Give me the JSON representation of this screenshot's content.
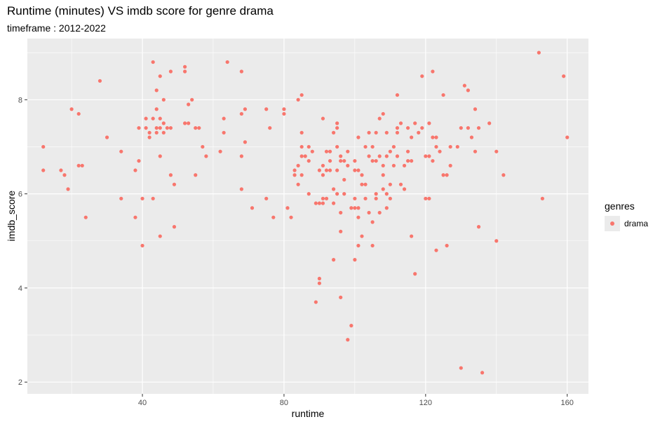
{
  "chart_data": {
    "type": "scatter",
    "title": "Runtime (minutes) VS imdb score for genre drama",
    "subtitle": "timeframe : 2012-2022",
    "xlabel": "runtime",
    "ylabel": "imdb_score",
    "xlim": [
      7.5,
      166
    ],
    "ylim": [
      1.75,
      9.3
    ],
    "xticks": [
      40,
      80,
      120,
      160
    ],
    "yticks": [
      2,
      4,
      6,
      8
    ],
    "grid": true,
    "legend": {
      "title": "genres",
      "position": "right",
      "entries": [
        "drama"
      ]
    },
    "colors": {
      "point": "#F8766D",
      "panel": "#EBEBEB",
      "grid": "#FFFFFF"
    },
    "series": [
      {
        "name": "drama",
        "points": [
          [
            12,
            7.0
          ],
          [
            12,
            6.5
          ],
          [
            17,
            6.5
          ],
          [
            18,
            6.4
          ],
          [
            19,
            6.1
          ],
          [
            20,
            7.8
          ],
          [
            22,
            7.7
          ],
          [
            22,
            6.6
          ],
          [
            23,
            6.6
          ],
          [
            24,
            5.5
          ],
          [
            28,
            8.4
          ],
          [
            30,
            7.2
          ],
          [
            34,
            6.9
          ],
          [
            34,
            5.9
          ],
          [
            38,
            6.5
          ],
          [
            38,
            5.5
          ],
          [
            39,
            7.4
          ],
          [
            39,
            6.7
          ],
          [
            40,
            5.9
          ],
          [
            40,
            4.9
          ],
          [
            41,
            7.4
          ],
          [
            41,
            7.6
          ],
          [
            42,
            7.2
          ],
          [
            42,
            7.3
          ],
          [
            43,
            8.8
          ],
          [
            43,
            7.6
          ],
          [
            43,
            5.9
          ],
          [
            44,
            7.8
          ],
          [
            44,
            8.2
          ],
          [
            44,
            7.4
          ],
          [
            44,
            7.3
          ],
          [
            45,
            8.5
          ],
          [
            45,
            7.6
          ],
          [
            45,
            7.4
          ],
          [
            45,
            6.8
          ],
          [
            45,
            5.1
          ],
          [
            46,
            8.0
          ],
          [
            46,
            7.5
          ],
          [
            46,
            7.3
          ],
          [
            47,
            7.4
          ],
          [
            48,
            8.6
          ],
          [
            48,
            7.4
          ],
          [
            48,
            6.4
          ],
          [
            49,
            6.2
          ],
          [
            49,
            5.3
          ],
          [
            52,
            8.7
          ],
          [
            52,
            8.6
          ],
          [
            52,
            7.5
          ],
          [
            53,
            7.9
          ],
          [
            53,
            7.5
          ],
          [
            54,
            8.0
          ],
          [
            55,
            7.4
          ],
          [
            55,
            6.4
          ],
          [
            56,
            7.4
          ],
          [
            57,
            7.0
          ],
          [
            58,
            6.8
          ],
          [
            62,
            6.9
          ],
          [
            63,
            7.6
          ],
          [
            63,
            7.3
          ],
          [
            64,
            8.8
          ],
          [
            68,
            8.6
          ],
          [
            68,
            7.7
          ],
          [
            68,
            6.8
          ],
          [
            68,
            6.1
          ],
          [
            69,
            7.8
          ],
          [
            69,
            7.1
          ],
          [
            71,
            5.7
          ],
          [
            75,
            5.9
          ],
          [
            75,
            7.8
          ],
          [
            76,
            7.4
          ],
          [
            77,
            5.5
          ],
          [
            80,
            7.8
          ],
          [
            80,
            7.7
          ],
          [
            81,
            5.7
          ],
          [
            82,
            5.5
          ],
          [
            83,
            6.5
          ],
          [
            83,
            6.4
          ],
          [
            84,
            8.0
          ],
          [
            84,
            6.6
          ],
          [
            84,
            6.2
          ],
          [
            85,
            8.1
          ],
          [
            85,
            7.3
          ],
          [
            85,
            7.0
          ],
          [
            85,
            6.8
          ],
          [
            85,
            6.4
          ],
          [
            86,
            6.8
          ],
          [
            87,
            7.0
          ],
          [
            87,
            6.7
          ],
          [
            87,
            6.0
          ],
          [
            88,
            6.9
          ],
          [
            89,
            5.8
          ],
          [
            89,
            3.7
          ],
          [
            90,
            6.5
          ],
          [
            90,
            5.8
          ],
          [
            90,
            4.2
          ],
          [
            90,
            4.1
          ],
          [
            91,
            7.6
          ],
          [
            91,
            6.6
          ],
          [
            91,
            6.4
          ],
          [
            91,
            5.8
          ],
          [
            91,
            5.9
          ],
          [
            92,
            6.9
          ],
          [
            92,
            6.5
          ],
          [
            92,
            5.9
          ],
          [
            93,
            6.9
          ],
          [
            93,
            6.7
          ],
          [
            93,
            6.5
          ],
          [
            94,
            7.3
          ],
          [
            94,
            4.6
          ],
          [
            94,
            6.1
          ],
          [
            94,
            5.8
          ],
          [
            95,
            7.4
          ],
          [
            95,
            7.5
          ],
          [
            95,
            7.0
          ],
          [
            95,
            6.5
          ],
          [
            95,
            6.0
          ],
          [
            96,
            6.8
          ],
          [
            96,
            6.7
          ],
          [
            96,
            5.6
          ],
          [
            96,
            5.2
          ],
          [
            96,
            3.8
          ],
          [
            97,
            6.7
          ],
          [
            97,
            6.3
          ],
          [
            97,
            6.0
          ],
          [
            98,
            6.9
          ],
          [
            98,
            6.6
          ],
          [
            98,
            2.9
          ],
          [
            99,
            5.7
          ],
          [
            99,
            3.2
          ],
          [
            100,
            6.7
          ],
          [
            100,
            6.5
          ],
          [
            100,
            5.9
          ],
          [
            100,
            5.7
          ],
          [
            100,
            4.6
          ],
          [
            101,
            7.2
          ],
          [
            101,
            6.5
          ],
          [
            101,
            5.7
          ],
          [
            101,
            5.5
          ],
          [
            101,
            4.9
          ],
          [
            102,
            6.4
          ],
          [
            102,
            6.2
          ],
          [
            102,
            5.1
          ],
          [
            103,
            7.0
          ],
          [
            103,
            6.2
          ],
          [
            103,
            5.9
          ],
          [
            104,
            7.3
          ],
          [
            104,
            6.8
          ],
          [
            104,
            5.6
          ],
          [
            105,
            7.0
          ],
          [
            105,
            6.7
          ],
          [
            105,
            5.4
          ],
          [
            105,
            4.9
          ],
          [
            106,
            7.3
          ],
          [
            106,
            6.7
          ],
          [
            106,
            6.0
          ],
          [
            106,
            5.9
          ],
          [
            107,
            7.6
          ],
          [
            107,
            6.8
          ],
          [
            107,
            5.6
          ],
          [
            108,
            7.7
          ],
          [
            108,
            6.6
          ],
          [
            108,
            6.4
          ],
          [
            108,
            6.1
          ],
          [
            109,
            7.3
          ],
          [
            109,
            6.8
          ],
          [
            109,
            6.0
          ],
          [
            109,
            5.7
          ],
          [
            110,
            6.9
          ],
          [
            110,
            6.2
          ],
          [
            110,
            5.9
          ],
          [
            111,
            7.0
          ],
          [
            111,
            6.6
          ],
          [
            112,
            8.1
          ],
          [
            112,
            7.4
          ],
          [
            112,
            7.3
          ],
          [
            112,
            6.8
          ],
          [
            113,
            7.5
          ],
          [
            113,
            6.2
          ],
          [
            114,
            6.6
          ],
          [
            114,
            6.1
          ],
          [
            115,
            7.4
          ],
          [
            115,
            6.9
          ],
          [
            115,
            6.7
          ],
          [
            116,
            7.2
          ],
          [
            116,
            6.7
          ],
          [
            116,
            5.1
          ],
          [
            117,
            7.5
          ],
          [
            117,
            4.3
          ],
          [
            118,
            7.3
          ],
          [
            119,
            8.5
          ],
          [
            119,
            7.4
          ],
          [
            120,
            6.8
          ],
          [
            120,
            5.9
          ],
          [
            121,
            7.5
          ],
          [
            121,
            6.8
          ],
          [
            121,
            5.9
          ],
          [
            122,
            8.6
          ],
          [
            122,
            7.2
          ],
          [
            122,
            6.7
          ],
          [
            123,
            7.2
          ],
          [
            123,
            7.0
          ],
          [
            123,
            4.8
          ],
          [
            124,
            6.9
          ],
          [
            125,
            8.1
          ],
          [
            125,
            6.4
          ],
          [
            126,
            6.4
          ],
          [
            126,
            4.9
          ],
          [
            127,
            7.0
          ],
          [
            127,
            6.6
          ],
          [
            129,
            7.0
          ],
          [
            130,
            7.4
          ],
          [
            130,
            2.3
          ],
          [
            131,
            8.3
          ],
          [
            132,
            8.2
          ],
          [
            132,
            7.4
          ],
          [
            133,
            7.2
          ],
          [
            134,
            7.8
          ],
          [
            134,
            6.9
          ],
          [
            135,
            7.4
          ],
          [
            135,
            5.3
          ],
          [
            136,
            2.2
          ],
          [
            138,
            7.5
          ],
          [
            140,
            6.9
          ],
          [
            140,
            5.0
          ],
          [
            142,
            6.4
          ],
          [
            152,
            9.0
          ],
          [
            153,
            5.9
          ],
          [
            159,
            8.5
          ],
          [
            160,
            7.2
          ]
        ]
      }
    ]
  }
}
